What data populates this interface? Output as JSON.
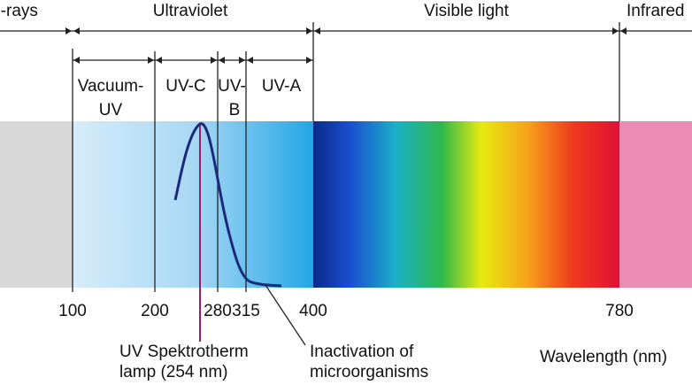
{
  "regions": [
    "X-rays",
    "Ultraviolet",
    "Visible light",
    "Infrared"
  ],
  "uv_bands": [
    [
      "Vacuum-",
      "UV"
    ],
    [
      "UV-C"
    ],
    [
      "UV-",
      "B"
    ],
    [
      "UV-A"
    ]
  ],
  "ticks": [
    100,
    200,
    280,
    315,
    400,
    780
  ],
  "lamp_label": [
    "UV Spektrotherm",
    "lamp (254 nm)"
  ],
  "inactivation_label": [
    "Inactivation of",
    "microorganisms"
  ],
  "axis_label": "Wavelength (nm)"
}
